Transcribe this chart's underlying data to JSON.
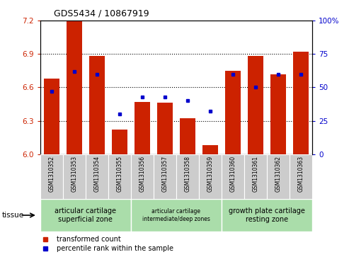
{
  "title": "GDS5434 / 10867919",
  "samples": [
    "GSM1310352",
    "GSM1310353",
    "GSM1310354",
    "GSM1310355",
    "GSM1310356",
    "GSM1310357",
    "GSM1310358",
    "GSM1310359",
    "GSM1310360",
    "GSM1310361",
    "GSM1310362",
    "GSM1310363"
  ],
  "red_values": [
    6.68,
    7.2,
    6.88,
    6.22,
    6.47,
    6.46,
    6.32,
    6.08,
    6.75,
    6.88,
    6.72,
    6.92
  ],
  "blue_percentiles": [
    47,
    62,
    60,
    30,
    43,
    43,
    40,
    32,
    60,
    50,
    60,
    60
  ],
  "ylim_left": [
    6.0,
    7.2
  ],
  "ylim_right": [
    0,
    100
  ],
  "y_ticks_left": [
    6.0,
    6.3,
    6.6,
    6.9,
    7.2
  ],
  "y_ticks_right": [
    0,
    25,
    50,
    75,
    100
  ],
  "bar_color": "#cc2200",
  "dot_color": "#0000cc",
  "sample_box_color": "#cccccc",
  "tissue_groups": [
    {
      "label": "articular cartilage\nsuperficial zone",
      "start": 0,
      "end": 4,
      "color": "#aaddaa",
      "fontsize": 7
    },
    {
      "label": "articular cartilage\nintermediate/deep zones",
      "start": 4,
      "end": 8,
      "color": "#aaddaa",
      "fontsize": 5.5
    },
    {
      "label": "growth plate cartilage\nresting zone",
      "start": 8,
      "end": 12,
      "color": "#aaddaa",
      "fontsize": 7
    }
  ],
  "tissue_label": "tissue",
  "legend_red": "transformed count",
  "legend_blue": "percentile rank within the sample",
  "bar_width": 0.7,
  "grid_yticks": [
    6.3,
    6.6,
    6.9
  ]
}
